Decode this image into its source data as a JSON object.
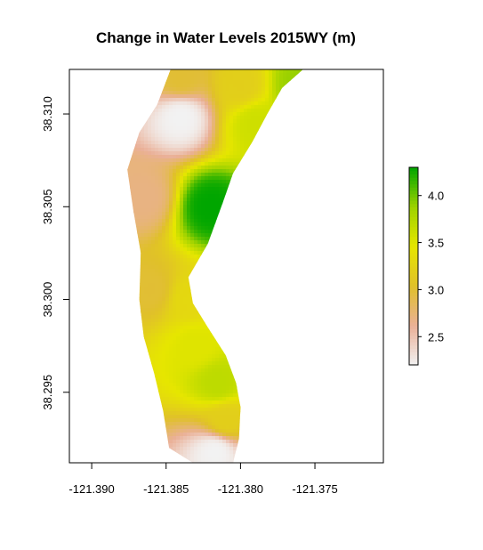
{
  "chart_data": {
    "type": "heatmap",
    "title": "Change in Water Levels 2015WY (m)",
    "xlabel": "",
    "ylabel": "",
    "x_ticks": [
      -121.39,
      -121.385,
      -121.38,
      -121.375
    ],
    "x_tick_labels": [
      "-121.390",
      "-121.385",
      "-121.380",
      "-121.375"
    ],
    "y_ticks": [
      38.295,
      38.3,
      38.305,
      38.31
    ],
    "y_tick_labels": [
      "38.295",
      "38.300",
      "38.305",
      "38.310"
    ],
    "xlim": [
      -121.3915,
      -121.3704
    ],
    "ylim": [
      38.2912,
      38.3124
    ],
    "legend": {
      "placement": "right",
      "range": [
        2.2,
        4.3
      ],
      "ticks": [
        2.5,
        3.0,
        3.5,
        4.0
      ],
      "tick_labels": [
        "2.5",
        "3.0",
        "3.5",
        "4.0"
      ],
      "colors": [
        "#f2f2f2",
        "#eab097",
        "#e0c02a",
        "#e6e600",
        "#9ed200",
        "#00a600"
      ]
    },
    "hotspots": [
      {
        "lon": -121.384,
        "lat": 38.3098,
        "value": 2.2
      },
      {
        "lon": -121.3817,
        "lat": 38.2918,
        "value": 2.2
      },
      {
        "lon": -121.3865,
        "lat": 38.3055,
        "value": 2.7
      },
      {
        "lon": -121.386,
        "lat": 38.3005,
        "value": 3.0
      },
      {
        "lon": -121.382,
        "lat": 38.305,
        "value": 4.3
      },
      {
        "lon": -121.379,
        "lat": 38.3095,
        "value": 3.6
      },
      {
        "lon": -121.376,
        "lat": 38.3115,
        "value": 3.9
      },
      {
        "lon": -121.384,
        "lat": 38.312,
        "value": 3.0
      },
      {
        "lon": -121.38,
        "lat": 38.3115,
        "value": 3.2
      },
      {
        "lon": -121.3835,
        "lat": 38.3,
        "value": 3.3
      },
      {
        "lon": -121.383,
        "lat": 38.2975,
        "value": 3.5
      },
      {
        "lon": -121.3815,
        "lat": 38.2955,
        "value": 3.7
      },
      {
        "lon": -121.381,
        "lat": 38.2935,
        "value": 3.2
      }
    ],
    "extent_outline": [
      [
        -121.3847,
        38.3124
      ],
      [
        -121.3758,
        38.3124
      ],
      [
        -121.3772,
        38.3114
      ],
      [
        -121.3782,
        38.31
      ],
      [
        -121.3792,
        38.3085
      ],
      [
        -121.3805,
        38.3068
      ],
      [
        -121.3812,
        38.3052
      ],
      [
        -121.3822,
        38.303
      ],
      [
        -121.3835,
        38.3012
      ],
      [
        -121.3832,
        38.2998
      ],
      [
        -121.3822,
        38.2985
      ],
      [
        -121.381,
        38.297
      ],
      [
        -121.3803,
        38.2955
      ],
      [
        -121.38,
        38.2942
      ],
      [
        -121.3801,
        38.2925
      ],
      [
        -121.3805,
        38.2912
      ],
      [
        -121.3832,
        38.2912
      ],
      [
        -121.3848,
        38.292
      ],
      [
        -121.3852,
        38.294
      ],
      [
        -121.3858,
        38.296
      ],
      [
        -121.3865,
        38.298
      ],
      [
        -121.3868,
        38.3
      ],
      [
        -121.3867,
        38.3025
      ],
      [
        -121.3872,
        38.3048
      ],
      [
        -121.3876,
        38.307
      ],
      [
        -121.3868,
        38.309
      ],
      [
        -121.3856,
        38.3105
      ],
      [
        -121.3847,
        38.3124
      ]
    ]
  }
}
